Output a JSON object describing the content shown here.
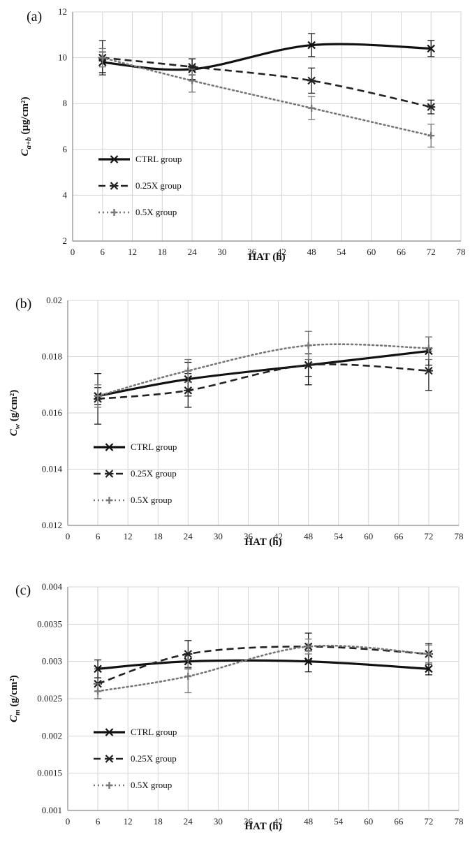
{
  "chart_data": [
    {
      "type": "line",
      "panel_label": "(a)",
      "xlabel": "HAT (h)",
      "ylabel": "C_a+b (µg/cm²)",
      "ylabel_main": "C",
      "ylabel_sub": "a+b",
      "ylabel_unit": " (µg/cm²)",
      "xlim": [
        0,
        78
      ],
      "ylim": [
        2,
        12
      ],
      "xticks": [
        0,
        6,
        12,
        18,
        24,
        30,
        36,
        42,
        48,
        54,
        60,
        66,
        72,
        78
      ],
      "yticks": [
        2,
        4,
        6,
        8,
        10,
        12
      ],
      "grid": true,
      "legend_position": "bottom-left",
      "series": [
        {
          "name": "CTRL group",
          "x": [
            6,
            24,
            48,
            72
          ],
          "y": [
            9.8,
            9.5,
            10.55,
            10.4
          ],
          "err": [
            0.45,
            0.45,
            0.5,
            0.35
          ]
        },
        {
          "name": "0.25X group",
          "x": [
            6,
            24,
            48,
            72
          ],
          "y": [
            10.0,
            9.6,
            9.0,
            7.85
          ],
          "err": [
            0.75,
            0.35,
            0.55,
            0.3
          ]
        },
        {
          "name": "0.5X group",
          "x": [
            6,
            24,
            48,
            72
          ],
          "y": [
            10.0,
            9.0,
            7.8,
            6.6
          ],
          "err": [
            0.4,
            0.5,
            0.5,
            0.5
          ]
        }
      ]
    },
    {
      "type": "line",
      "panel_label": "(b)",
      "xlabel": "HAT (h)",
      "ylabel": "C_w (g/cm²)",
      "ylabel_main": "C",
      "ylabel_sub": "w",
      "ylabel_unit": " (g/cm²)",
      "xlim": [
        0,
        78
      ],
      "ylim": [
        0.012,
        0.02
      ],
      "xticks": [
        0,
        6,
        12,
        18,
        24,
        30,
        36,
        42,
        48,
        54,
        60,
        66,
        72,
        78
      ],
      "yticks": [
        0.012,
        0.014,
        0.016,
        0.018,
        0.02
      ],
      "ytick_labels": [
        "0.012",
        "0.014",
        "0.016",
        "0.018",
        "0.02"
      ],
      "grid": true,
      "legend_position": "bottom-left",
      "series": [
        {
          "name": "CTRL group",
          "x": [
            6,
            24,
            48,
            72
          ],
          "y": [
            0.0166,
            0.0172,
            0.0177,
            0.0182
          ],
          "err": [
            0.0003,
            0.0006,
            0.0007,
            0.0005
          ]
        },
        {
          "name": "0.25X group",
          "x": [
            6,
            24,
            48,
            72
          ],
          "y": [
            0.0165,
            0.0168,
            0.0177,
            0.0175
          ],
          "err": [
            0.0009,
            0.0006,
            0.0004,
            0.0007
          ]
        },
        {
          "name": "0.5X group",
          "x": [
            6,
            24,
            48,
            72
          ],
          "y": [
            0.0166,
            0.0175,
            0.0184,
            0.0183
          ],
          "err": [
            0.0004,
            0.0004,
            0.0005,
            0.0004
          ]
        }
      ]
    },
    {
      "type": "line",
      "panel_label": "(c)",
      "xlabel": "HAT (h)",
      "ylabel": "C_m (g/cm²)",
      "ylabel_main": "C",
      "ylabel_sub": "m",
      "ylabel_unit": " (g/cm²)",
      "xlim": [
        0,
        78
      ],
      "ylim": [
        0.001,
        0.004
      ],
      "xticks": [
        0,
        6,
        12,
        18,
        24,
        30,
        36,
        42,
        48,
        54,
        60,
        66,
        72,
        78
      ],
      "yticks": [
        0.001,
        0.0015,
        0.002,
        0.0025,
        0.003,
        0.0035,
        0.004
      ],
      "ytick_labels": [
        "0.001",
        "0.0015",
        "0.002",
        "0.0025",
        "0.003",
        "0.0035",
        "0.004"
      ],
      "grid": true,
      "legend_position": "bottom-left",
      "series": [
        {
          "name": "CTRL group",
          "x": [
            6,
            24,
            48,
            72
          ],
          "y": [
            0.0029,
            0.003,
            0.003,
            0.0029
          ],
          "err": [
            0.00012,
            0.0001,
            0.00014,
            8e-05
          ]
        },
        {
          "name": "0.25X group",
          "x": [
            6,
            24,
            48,
            72
          ],
          "y": [
            0.0027,
            0.0031,
            0.0032,
            0.0031
          ],
          "err": [
            0.0002,
            0.00018,
            0.00018,
            0.00014
          ]
        },
        {
          "name": "0.5X group",
          "x": [
            6,
            24,
            48,
            72
          ],
          "y": [
            0.0026,
            0.0028,
            0.0032,
            0.0031
          ],
          "err": [
            0.0001,
            0.00022,
            0.0001,
            0.00012
          ]
        }
      ]
    }
  ],
  "series_styles": [
    {
      "color": "#111111",
      "width": 3.2,
      "dash": "",
      "marker": "x"
    },
    {
      "color": "#222222",
      "width": 2.6,
      "dash": "10,6",
      "marker": "asterisk"
    },
    {
      "color": "#777777",
      "width": 2.6,
      "dash": "2,4",
      "marker": "plus"
    }
  ]
}
